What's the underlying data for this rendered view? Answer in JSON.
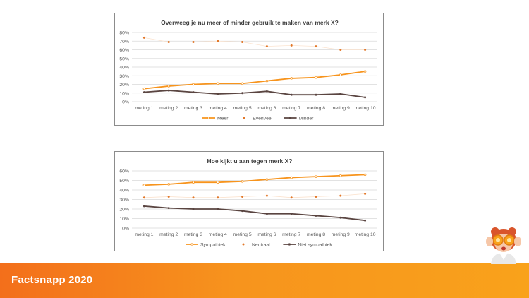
{
  "footer": {
    "title": "Factsnapp 2020"
  },
  "colors": {
    "meer": "#f7941d",
    "evenveel": "#e2782a",
    "minder": "#5a4541",
    "footer": "#f7941d"
  },
  "chart_data": [
    {
      "type": "line",
      "title": "Overweeg je nu meer of minder gebruik te maken van merk X?",
      "categories": [
        "meting 1",
        "meting 2",
        "meting 3",
        "meting 4",
        "meting 5",
        "meting 6",
        "meting 7",
        "meting 8",
        "meting 9",
        "meting 10"
      ],
      "yticks": [
        "0%",
        "10%",
        "20%",
        "30%",
        "40%",
        "50%",
        "60%",
        "70%",
        "80%"
      ],
      "ylim": [
        0,
        80
      ],
      "legend_position": "bottom",
      "grid": true,
      "series": [
        {
          "name": "Meer",
          "style": "line",
          "values": [
            15,
            18,
            20,
            21,
            21,
            24,
            27,
            28,
            31,
            35
          ]
        },
        {
          "name": "Evenveel",
          "style": "dotted",
          "values": [
            74,
            69,
            69,
            70,
            69,
            64,
            65,
            64,
            60,
            60
          ]
        },
        {
          "name": "Minder",
          "style": "line",
          "values": [
            11,
            13,
            11,
            9,
            10,
            12,
            8,
            8,
            9,
            5
          ]
        }
      ]
    },
    {
      "type": "line",
      "title": "Hoe kijkt u aan tegen merk X?",
      "categories": [
        "meting 1",
        "meting 2",
        "meting 3",
        "meting 4",
        "meting 5",
        "meting 6",
        "meting 7",
        "meting 8",
        "meting 9",
        "meting 10"
      ],
      "yticks": [
        "0%",
        "10%",
        "20%",
        "30%",
        "40%",
        "50%",
        "60%"
      ],
      "ylim": [
        0,
        60
      ],
      "legend_position": "bottom",
      "grid": true,
      "series": [
        {
          "name": "Sympathiek",
          "style": "line",
          "values": [
            45,
            46,
            48,
            48,
            49,
            51,
            53,
            54,
            55,
            56
          ]
        },
        {
          "name": "Neutraal",
          "style": "dotted",
          "values": [
            32,
            33,
            32,
            32,
            33,
            34,
            32,
            33,
            34,
            36
          ]
        },
        {
          "name": "Niet sympathiek",
          "style": "line",
          "values": [
            23,
            21,
            20,
            20,
            18,
            15,
            15,
            13,
            11,
            8
          ]
        }
      ]
    }
  ]
}
